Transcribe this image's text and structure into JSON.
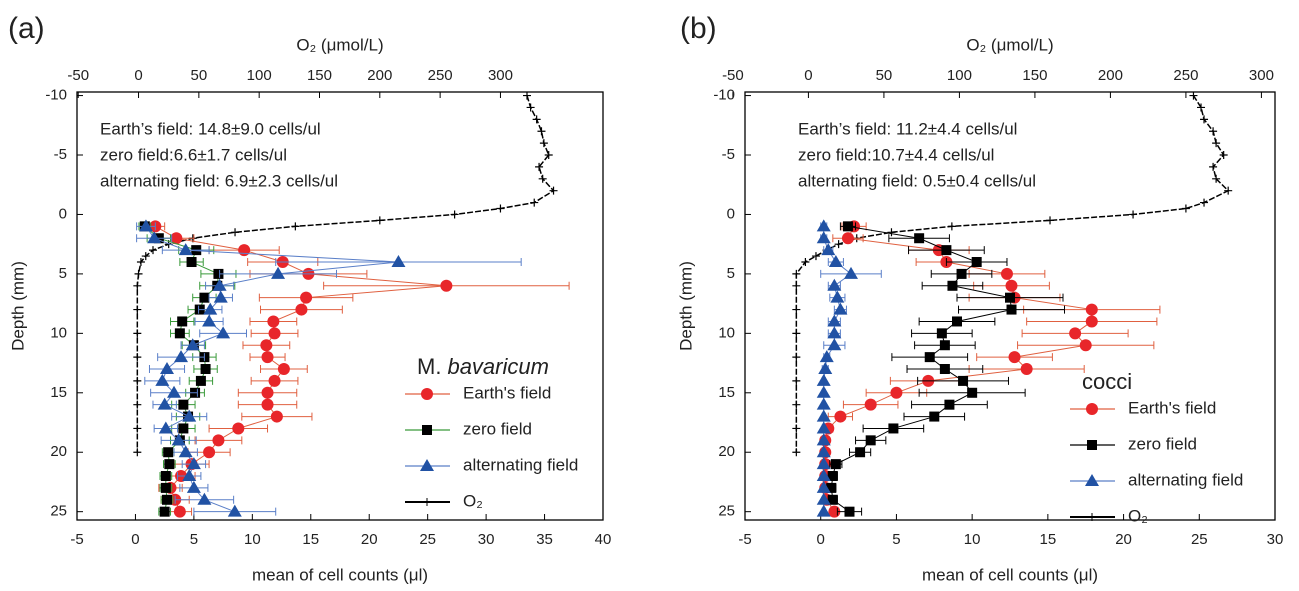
{
  "chart_data": [
    {
      "type": "profile",
      "panel_label": "(a)",
      "x_label": "mean of cell counts (μl)",
      "x2_label": "O₂ (μmol/L)",
      "y_label": "Depth (mm)",
      "xlim": [
        -5,
        40
      ],
      "xticks": [
        -5,
        0,
        5,
        10,
        15,
        20,
        25,
        30,
        35,
        40
      ],
      "x2lim": [
        -51,
        385
      ],
      "x2ticks": [
        -50,
        0,
        50,
        100,
        150,
        200,
        250,
        300
      ],
      "ylim": [
        -10.3,
        25.7
      ],
      "yticks": [
        -10,
        -5,
        0,
        5,
        10,
        15,
        20,
        25
      ],
      "y_inverted": true,
      "annotations": [
        "Earth’s field: 14.8±9.0 cells/ul",
        "zero field:6.6±1.7 cells/ul",
        "alternating field: 6.9±2.3 cells/ul"
      ],
      "legend_title": "M.",
      "legend_title_italic": "bavaricum",
      "depths": [
        1,
        2,
        3,
        4,
        5,
        6,
        7,
        8,
        9,
        10,
        11,
        12,
        13,
        14,
        15,
        16,
        17,
        18,
        19,
        20,
        21,
        22,
        23,
        24,
        25
      ],
      "series": [
        {
          "name": "Earth's field",
          "color": "#e8262a",
          "line_color": "#e06040",
          "marker": "circle",
          "values": [
            1.7,
            3.5,
            9.3,
            12.6,
            14.8,
            26.6,
            14.6,
            14.2,
            11.8,
            11.9,
            11.2,
            11.3,
            12.7,
            11.9,
            11.3,
            11.3,
            12.1,
            8.8,
            7.1,
            6.3,
            4.8,
            3.9,
            3.0,
            3.4,
            3.8
          ],
          "errors": [
            0.8,
            1.5,
            3,
            3,
            5,
            10.5,
            4,
            3.5,
            2,
            2,
            2,
            1.5,
            2,
            2,
            2.5,
            2.5,
            3,
            2.5,
            2,
            1.8,
            1.5,
            1.2,
            1,
            1.2,
            1
          ]
        },
        {
          "name": "zero field",
          "color": "#000000",
          "line_color": "#3a9a3a",
          "marker": "square",
          "values": [
            0.8,
            2.0,
            5.2,
            4.8,
            7.1,
            7.0,
            5.9,
            5.5,
            4.0,
            3.8,
            5.0,
            5.9,
            6.0,
            5.6,
            5.1,
            4.1,
            4.5,
            4.1,
            3.8,
            2.8,
            2.9,
            2.6,
            2.6,
            2.7,
            2.5
          ],
          "errors": [
            0.5,
            1,
            1.5,
            1,
            1.5,
            1.5,
            1,
            1,
            1,
            0.8,
            1,
            1,
            1,
            1,
            0.8,
            1,
            1,
            1,
            0.8,
            0.5,
            0.5,
            0.5,
            0.5,
            0.5,
            0.5
          ]
        },
        {
          "name": "alternating field",
          "color": "#2152a4",
          "line_color": "#5a7fc8",
          "marker": "triangle",
          "values": [
            0.9,
            1.6,
            4.3,
            22.5,
            12.2,
            7.2,
            7.3,
            6.4,
            6.3,
            7.5,
            4.9,
            3.9,
            2.7,
            2.3,
            3.3,
            2.5,
            4.6,
            2.6,
            3.7,
            4.3,
            5.0,
            4.6,
            5.0,
            5.9,
            8.5
          ],
          "errors": [
            0.8,
            1.5,
            2,
            10.5,
            5,
            1.2,
            1,
            1,
            1.2,
            2,
            1,
            2,
            1.5,
            1.5,
            2,
            1,
            1.5,
            1,
            1.5,
            1,
            1,
            1,
            1.2,
            2.5,
            3.5
          ]
        }
      ],
      "o2": {
        "name": "O₂",
        "color": "#000000",
        "axis": "x2",
        "depths": [
          -10,
          -9,
          -8,
          -7,
          -6,
          -5,
          -4,
          -3,
          -2,
          -1,
          -0.5,
          0,
          0.5,
          1,
          1.5,
          2,
          2.5,
          3,
          3.5,
          4,
          5,
          6,
          8,
          10,
          12,
          14,
          16,
          18,
          20
        ],
        "values": [
          322,
          325,
          330,
          334,
          336,
          340,
          332,
          335,
          344,
          328,
          300,
          262,
          200,
          130,
          80,
          45,
          25,
          12,
          6,
          2,
          0,
          -1,
          -1,
          -1,
          -1,
          -1,
          -1,
          -1,
          -1
        ]
      }
    },
    {
      "type": "profile",
      "panel_label": "(b)",
      "x_label": "mean of cell counts (μl)",
      "x2_label": "O₂ (μmol/L)",
      "y_label": "Depth (mm)",
      "xlim": [
        -5,
        30
      ],
      "xticks": [
        -5,
        0,
        5,
        10,
        15,
        20,
        25,
        30
      ],
      "x2lim": [
        -42,
        309
      ],
      "x2ticks": [
        -50,
        0,
        50,
        100,
        150,
        200,
        250,
        300
      ],
      "ylim": [
        -10.3,
        25.7
      ],
      "yticks": [
        -10,
        -5,
        0,
        5,
        10,
        15,
        20,
        25
      ],
      "y_inverted": true,
      "annotations": [
        "Earth’s field: 11.2±4.4 cells/ul",
        "zero field:10.7±4.4 cells/ul",
        "alternating field: 0.5±0.4 cells/ul"
      ],
      "legend_title": "cocci",
      "depths": [
        1,
        2,
        3,
        4,
        5,
        6,
        7,
        8,
        9,
        10,
        11,
        12,
        13,
        14,
        15,
        16,
        17,
        18,
        19,
        20,
        21,
        22,
        23,
        24,
        25
      ],
      "series": [
        {
          "name": "Earth's field",
          "color": "#e8262a",
          "line_color": "#e06040",
          "marker": "circle",
          "values": [
            2.2,
            1.8,
            7.8,
            8.3,
            12.3,
            12.6,
            12.8,
            17.9,
            17.9,
            16.8,
            17.5,
            12.8,
            13.6,
            7.1,
            5.0,
            3.3,
            1.3,
            0.5,
            0.3,
            0.3,
            0.3,
            0.3,
            0.3,
            0.4,
            0.9
          ],
          "errors": [
            0.8,
            1,
            2,
            2,
            2.5,
            2.5,
            3,
            4.5,
            4.3,
            3.5,
            4.5,
            2.5,
            3.8,
            2.5,
            2,
            1.8,
            0.8,
            0.3,
            0.2,
            0.2,
            0.2,
            0.2,
            0.2,
            0.2,
            0.2
          ]
        },
        {
          "name": "zero field",
          "color": "#000000",
          "line_color": "#000000",
          "marker": "square",
          "values": [
            1.8,
            6.5,
            8.3,
            10.3,
            9.3,
            8.7,
            12.5,
            12.6,
            9.0,
            8.0,
            8.2,
            7.2,
            8.2,
            9.4,
            10.0,
            8.5,
            7.5,
            4.8,
            3.3,
            2.6,
            1.0,
            0.8,
            0.7,
            0.8,
            1.9
          ],
          "errors": [
            0.5,
            2,
            2.5,
            2,
            2,
            2,
            3.5,
            3.5,
            2.5,
            2,
            2,
            2.5,
            2.5,
            3,
            3.5,
            2.5,
            2,
            2,
            1,
            0.7,
            0.4,
            0.3,
            0.3,
            0.3,
            0.8
          ]
        },
        {
          "name": "alternating field",
          "color": "#2152a4",
          "line_color": "#5a7fc8",
          "marker": "triangle",
          "values": [
            0.2,
            0.2,
            0.5,
            1.0,
            2.0,
            0.9,
            1.1,
            1.3,
            0.9,
            0.9,
            0.9,
            0.4,
            0.3,
            0.2,
            0.2,
            0.2,
            0.2,
            0.2,
            0.2,
            0.2,
            0.2,
            0.2,
            0.2,
            0.2,
            0.2
          ],
          "errors": [
            0.2,
            0.2,
            0.3,
            0.5,
            2,
            0.4,
            0.5,
            0.4,
            0.4,
            0.4,
            0.7,
            0.2,
            0.2,
            0.1,
            0.1,
            0.1,
            0.1,
            0.1,
            0.1,
            0.1,
            0.1,
            0.1,
            0.1,
            0.1,
            0.1
          ]
        }
      ],
      "o2": {
        "name": "O₂",
        "color": "#000000",
        "axis": "x2",
        "depths": [
          -10,
          -9,
          -8,
          -7,
          -6,
          -5,
          -4,
          -3,
          -2,
          -1,
          -0.5,
          0,
          0.5,
          1,
          1.5,
          2,
          2.5,
          3,
          3.5,
          4,
          5,
          6,
          8,
          10,
          12,
          14,
          16,
          18,
          20
        ],
        "values": [
          255,
          260,
          262,
          268,
          270,
          275,
          268,
          270,
          278,
          262,
          250,
          215,
          160,
          95,
          55,
          32,
          20,
          12,
          5,
          -2,
          -8,
          -8,
          -8,
          -8,
          -8,
          -8,
          -8,
          -8,
          -8
        ]
      }
    }
  ]
}
